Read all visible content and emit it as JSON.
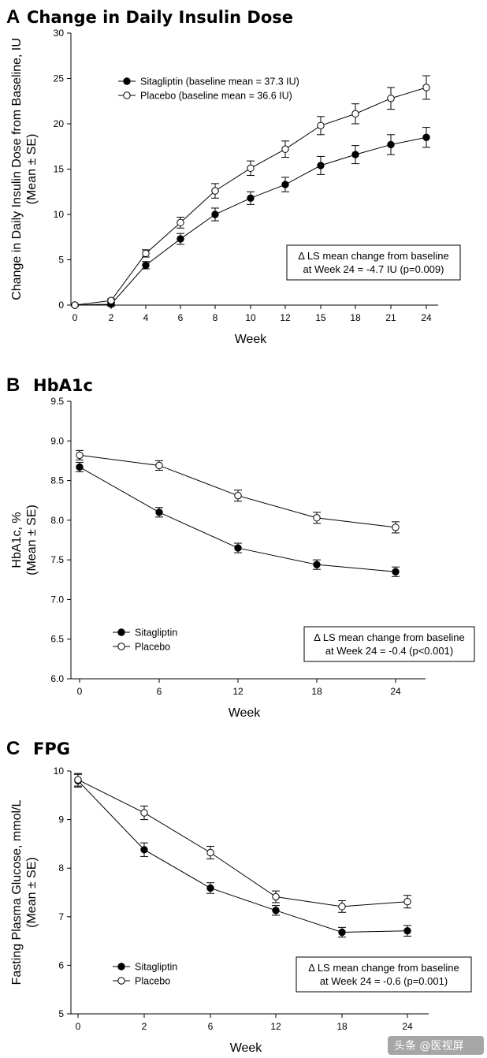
{
  "chart_data": [
    {
      "type": "line",
      "panel": "A",
      "title": "Change in Daily Insulin Dose",
      "xlabel": "Week",
      "ylabel": "Change in Daily Insulin Dose from Baseline, IU",
      "ylabel2": "(Mean ± SE)",
      "categories": [
        "0",
        "2",
        "4",
        "6",
        "8",
        "10",
        "12",
        "15",
        "18",
        "21",
        "24"
      ],
      "ylim": [
        0,
        30
      ],
      "yticks": [
        0,
        5,
        10,
        15,
        20,
        25,
        30
      ],
      "series": [
        {
          "name": "Sitagliptin (baseline mean = 37.3 IU)",
          "marker": "filled",
          "values": [
            0,
            0.1,
            4.4,
            7.3,
            10.0,
            11.8,
            13.3,
            15.4,
            16.6,
            17.7,
            18.5
          ],
          "errors": [
            0.1,
            0.2,
            0.4,
            0.6,
            0.7,
            0.7,
            0.8,
            1.0,
            1.0,
            1.1,
            1.1
          ]
        },
        {
          "name": "Placebo (baseline mean = 36.6 IU)",
          "marker": "open",
          "values": [
            0,
            0.5,
            5.7,
            9.1,
            12.6,
            15.1,
            17.2,
            19.8,
            21.1,
            22.8,
            24.0
          ],
          "errors": [
            0.1,
            0.2,
            0.4,
            0.6,
            0.8,
            0.8,
            0.9,
            1.0,
            1.1,
            1.2,
            1.3
          ]
        }
      ],
      "annotation": [
        "Δ LS mean change from baseline",
        "at Week 24 = -4.7 IU (p=0.009)"
      ],
      "legend_position": "top-left"
    },
    {
      "type": "line",
      "panel": "B",
      "title": "HbA1c",
      "xlabel": "Week",
      "ylabel": "HbA1c, %",
      "ylabel2": "(Mean ± SE)",
      "categories": [
        "0",
        "6",
        "12",
        "18",
        "24"
      ],
      "ylim": [
        6.0,
        9.5
      ],
      "yticks": [
        "6.0",
        "6.5",
        "7.0",
        "7.5",
        "8.0",
        "8.5",
        "9.0",
        "9.5"
      ],
      "series": [
        {
          "name": "Sitagliptin",
          "marker": "filled",
          "values": [
            8.67,
            8.1,
            7.65,
            7.44,
            7.35
          ],
          "errors": [
            0.06,
            0.06,
            0.06,
            0.06,
            0.06
          ]
        },
        {
          "name": "Placebo",
          "marker": "open",
          "values": [
            8.82,
            8.69,
            8.31,
            8.03,
            7.91
          ],
          "errors": [
            0.06,
            0.06,
            0.07,
            0.07,
            0.07
          ]
        }
      ],
      "annotation": [
        "Δ LS mean change from baseline",
        "at Week 24 = -0.4 (p<0.001)"
      ],
      "legend_position": "bottom-left"
    },
    {
      "type": "line",
      "panel": "C",
      "title": "FPG",
      "xlabel": "Week",
      "ylabel": "Fasting Plasma Glucose, mmol/L",
      "ylabel2": "(Mean ± SE)",
      "categories": [
        "0",
        "2",
        "6",
        "12",
        "18",
        "24"
      ],
      "ylim": [
        5,
        10
      ],
      "yticks": [
        5,
        6,
        7,
        8,
        9,
        10
      ],
      "series": [
        {
          "name": "Sitagliptin",
          "marker": "filled",
          "values": [
            9.8,
            8.38,
            7.59,
            7.13,
            6.68,
            6.71
          ],
          "errors": [
            0.13,
            0.14,
            0.11,
            0.1,
            0.1,
            0.11
          ]
        },
        {
          "name": "Placebo",
          "marker": "open",
          "values": [
            9.82,
            9.14,
            8.32,
            7.41,
            7.21,
            7.31
          ],
          "errors": [
            0.13,
            0.14,
            0.13,
            0.12,
            0.12,
            0.13
          ]
        }
      ],
      "annotation": [
        "Δ LS mean change from baseline",
        "at Week 24 = -0.6 (p=0.001)"
      ],
      "legend_position": "bottom-left"
    }
  ],
  "watermark": "头条 @医视屏"
}
